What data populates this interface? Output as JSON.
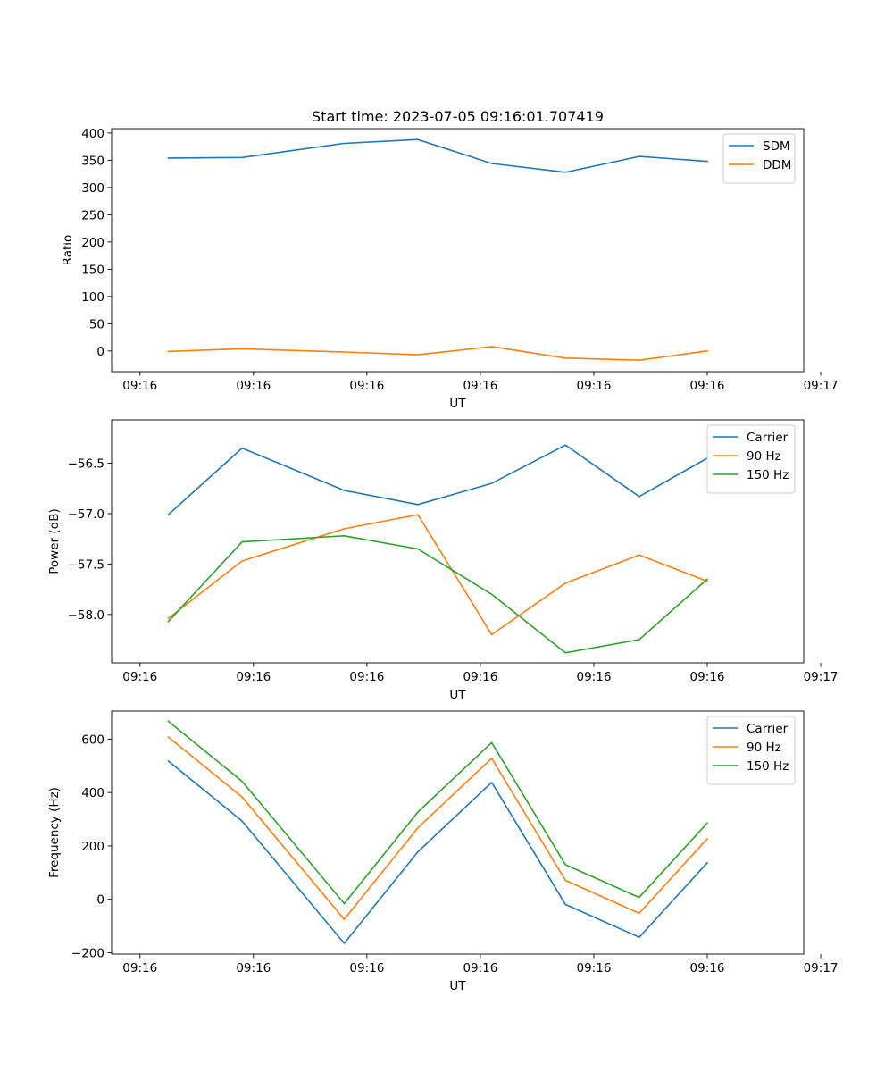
{
  "chart_data": [
    {
      "type": "line",
      "title": "Start time: 2023-07-05 09:16:01.707419",
      "xlabel": "UT",
      "ylabel": "Ratio",
      "xlim": [
        -0.25,
        5.85
      ],
      "ylim": [
        -38,
        408
      ],
      "x": [
        0.25,
        0.9,
        1.8,
        2.45,
        3.1,
        3.75,
        4.4,
        5.0
      ],
      "xticks": [
        0,
        1,
        2,
        3,
        4,
        5,
        6
      ],
      "xtick_labels": [
        "09:16",
        "09:16",
        "09:16",
        "09:16",
        "09:16",
        "09:16",
        "09:17"
      ],
      "yticks": [
        0,
        50,
        100,
        150,
        200,
        250,
        300,
        350,
        400
      ],
      "ytick_labels": [
        "0",
        "50",
        "100",
        "150",
        "200",
        "250",
        "300",
        "350",
        "400"
      ],
      "series": [
        {
          "name": "SDM",
          "color": "#1f77b4",
          "values": [
            354,
            355,
            381,
            388,
            344,
            328,
            357,
            348
          ]
        },
        {
          "name": "DDM",
          "color": "#ff7f0e",
          "values": [
            -1,
            4,
            -2,
            -7,
            8,
            -13,
            -17,
            0
          ]
        }
      ],
      "legend": "top-right"
    },
    {
      "type": "line",
      "title": "",
      "xlabel": "UT",
      "ylabel": "Power (dB)",
      "xlim": [
        -0.25,
        5.85
      ],
      "ylim": [
        -58.48,
        -56.07
      ],
      "x": [
        0.25,
        0.9,
        1.8,
        2.45,
        3.1,
        3.75,
        4.4,
        5.0
      ],
      "xticks": [
        0,
        1,
        2,
        3,
        4,
        5,
        6
      ],
      "xtick_labels": [
        "09:16",
        "09:16",
        "09:16",
        "09:16",
        "09:16",
        "09:16",
        "09:17"
      ],
      "yticks": [
        -58.0,
        -57.5,
        -57.0,
        -56.5
      ],
      "ytick_labels": [
        "−58.0",
        "−57.5",
        "−57.0",
        "−56.5"
      ],
      "series": [
        {
          "name": "Carrier",
          "color": "#1f77b4",
          "values": [
            -57.01,
            -56.35,
            -56.77,
            -56.91,
            -56.7,
            -56.32,
            -56.83,
            -56.45
          ]
        },
        {
          "name": "90 Hz",
          "color": "#ff7f0e",
          "values": [
            -58.04,
            -57.47,
            -57.15,
            -57.01,
            -58.2,
            -57.69,
            -57.41,
            -57.67
          ]
        },
        {
          "name": "150 Hz",
          "color": "#2ca02c",
          "values": [
            -58.07,
            -57.28,
            -57.22,
            -57.35,
            -57.8,
            -58.38,
            -58.25,
            -57.65
          ]
        }
      ],
      "legend": "top-right"
    },
    {
      "type": "line",
      "title": "",
      "xlabel": "UT",
      "ylabel": "Frequency (Hz)",
      "xlim": [
        -0.25,
        5.85
      ],
      "ylim": [
        -205,
        705
      ],
      "x": [
        0.25,
        0.9,
        1.8,
        2.45,
        3.1,
        3.75,
        4.4,
        5.0
      ],
      "xticks": [
        0,
        1,
        2,
        3,
        4,
        5,
        6
      ],
      "xtick_labels": [
        "09:16",
        "09:16",
        "09:16",
        "09:16",
        "09:16",
        "09:16",
        "09:17"
      ],
      "yticks": [
        -200,
        0,
        200,
        400,
        600
      ],
      "ytick_labels": [
        "−200",
        "0",
        "200",
        "400",
        "600"
      ],
      "series": [
        {
          "name": "Carrier",
          "color": "#1f77b4",
          "values": [
            518,
            293,
            -165,
            178,
            438,
            -19,
            -142,
            137
          ]
        },
        {
          "name": "90 Hz",
          "color": "#ff7f0e",
          "values": [
            608,
            383,
            -75,
            268,
            528,
            71,
            -52,
            227
          ]
        },
        {
          "name": "150 Hz",
          "color": "#2ca02c",
          "values": [
            667,
            442,
            -16,
            327,
            587,
            130,
            7,
            286
          ]
        }
      ],
      "legend": "top-right"
    }
  ]
}
